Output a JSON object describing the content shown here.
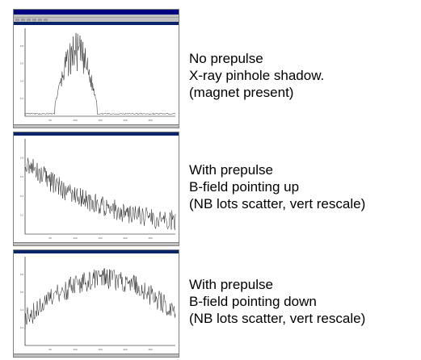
{
  "panels": [
    {
      "id": "no-prepulse",
      "caption": [
        "No prepulse",
        "X-ray pinhole shadow.",
        "(magnet present)"
      ],
      "chart_data": {
        "type": "line",
        "xlim": [
          0,
          300
        ],
        "ylim": [
          0,
          1
        ],
        "profile": "burst",
        "x_tick_labels": [
          "50",
          "100",
          "150",
          "200",
          "250"
        ],
        "y_tick_labels": [
          "0.2",
          "0.4",
          "0.6",
          "0.8"
        ]
      }
    },
    {
      "id": "prepulse-up",
      "caption": [
        "With prepulse",
        "B-field pointing up",
        "(NB lots scatter, vert rescale)"
      ],
      "chart_data": {
        "type": "line",
        "xlim": [
          0,
          300
        ],
        "ylim": [
          0,
          1
        ],
        "profile": "decay",
        "x_tick_labels": [
          "50",
          "100",
          "150",
          "200",
          "250"
        ],
        "y_tick_labels": [
          "0.2",
          "0.4",
          "0.6",
          "0.8"
        ]
      }
    },
    {
      "id": "prepulse-down",
      "caption": [
        "With prepulse",
        "B-field pointing down",
        "(NB lots scatter, vert rescale)"
      ],
      "chart_data": {
        "type": "line",
        "xlim": [
          0,
          300
        ],
        "ylim": [
          0,
          1
        ],
        "profile": "hump",
        "x_tick_labels": [
          "50",
          "100",
          "150",
          "200",
          "250"
        ],
        "y_tick_labels": [
          "0.2",
          "0.4",
          "0.6",
          "0.8"
        ]
      }
    }
  ],
  "colors": {
    "line": "#222222",
    "axis": "#000000"
  }
}
